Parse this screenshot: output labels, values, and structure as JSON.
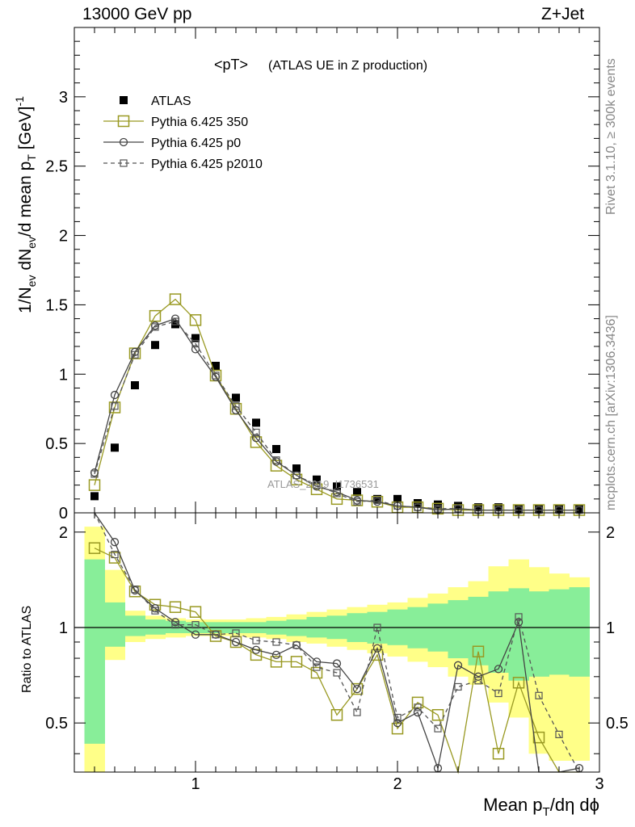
{
  "header": {
    "left": "13000 GeV pp",
    "right": "Z+Jet"
  },
  "side_labels": {
    "rivet": "Rivet 3.1.10, ≥ 300k events",
    "mcplots": "mcplots.cern.ch [arXiv:1306.3436]"
  },
  "watermark": "ATLAS_2019_I1736531",
  "chart_data": [
    {
      "type": "scatter",
      "title": "<pT> (ATLAS UE in Z production)",
      "title_main": "<pT>",
      "title_sub": "(ATLAS UE in Z production)",
      "ylabel": "1/N_ev dN_ev/d mean p_T [GeV]^-1",
      "xlim": [
        0.4,
        3.0
      ],
      "ylim": [
        0,
        3.5
      ],
      "yticks": [
        0,
        0.5,
        1,
        1.5,
        2,
        2.5,
        3
      ],
      "ytick_labels": [
        "0",
        "0.5",
        "1",
        "1.5",
        "2",
        "2.5",
        "3"
      ],
      "legend_position": "top-left",
      "x": [
        0.5,
        0.6,
        0.7,
        0.8,
        0.9,
        1.0,
        1.1,
        1.2,
        1.3,
        1.4,
        1.5,
        1.6,
        1.7,
        1.8,
        1.9,
        2.0,
        2.1,
        2.2,
        2.3,
        2.4,
        2.5,
        2.6,
        2.7,
        2.8,
        2.9
      ],
      "series": [
        {
          "name": "ATLAS",
          "color": "#000000",
          "marker": "filled-square",
          "line": "none",
          "values": [
            0.12,
            0.47,
            0.92,
            1.21,
            1.36,
            1.26,
            1.06,
            0.83,
            0.65,
            0.46,
            0.32,
            0.24,
            0.19,
            0.15,
            0.1,
            0.1,
            0.07,
            0.06,
            0.05,
            0.04,
            0.04,
            0.03,
            0.03,
            0.03,
            0.03
          ]
        },
        {
          "name": "Pythia 6.425 350",
          "color": "#999922",
          "marker": "open-square",
          "line": "solid",
          "values": [
            0.2,
            0.76,
            1.15,
            1.42,
            1.54,
            1.39,
            0.99,
            0.75,
            0.51,
            0.34,
            0.24,
            0.17,
            0.1,
            0.09,
            0.08,
            0.04,
            0.04,
            0.03,
            0.02,
            0.02,
            0.02,
            0.02,
            0.02,
            0.02,
            0.02
          ]
        },
        {
          "name": "Pythia 6.425 p0",
          "color": "#444444",
          "marker": "open-circle",
          "line": "solid",
          "values": [
            0.29,
            0.85,
            1.16,
            1.35,
            1.4,
            1.18,
            0.98,
            0.74,
            0.54,
            0.37,
            0.27,
            0.19,
            0.15,
            0.09,
            0.08,
            0.05,
            0.04,
            0.02,
            0.03,
            0.02,
            0.02,
            0.02,
            0.02,
            0.02,
            0.02
          ]
        },
        {
          "name": "Pythia 6.425 p2010",
          "color": "#555555",
          "marker": "open-square-small",
          "line": "dashed",
          "values": [
            0.28,
            0.77,
            1.14,
            1.34,
            1.38,
            1.22,
            0.99,
            0.77,
            0.58,
            0.38,
            0.27,
            0.2,
            0.14,
            0.08,
            0.09,
            0.05,
            0.04,
            0.03,
            0.03,
            0.02,
            0.02,
            0.02,
            0.02,
            0.02,
            0.02
          ]
        }
      ]
    },
    {
      "type": "line",
      "ylabel": "Ratio to ATLAS",
      "xlabel": "Mean p_T/dη dϕ",
      "xlim": [
        0.4,
        3.0
      ],
      "ylim": [
        0.35,
        2.3
      ],
      "xticks": [
        1,
        2,
        3
      ],
      "xtick_labels": [
        "1",
        "2",
        "3"
      ],
      "yticks": [
        0.5,
        1,
        2
      ],
      "ytick_labels": [
        "0.5",
        "1",
        "2"
      ],
      "reference": 1.0,
      "x": [
        0.5,
        0.6,
        0.7,
        0.8,
        0.9,
        1.0,
        1.1,
        1.2,
        1.3,
        1.4,
        1.5,
        1.6,
        1.7,
        1.8,
        1.9,
        2.0,
        2.1,
        2.2,
        2.3,
        2.4,
        2.5,
        2.6,
        2.7,
        2.8,
        2.9
      ],
      "bands": {
        "yellow_upper": [
          2.08,
          1.52,
          1.13,
          1.09,
          1.07,
          1.06,
          1.06,
          1.06,
          1.07,
          1.08,
          1.1,
          1.12,
          1.14,
          1.16,
          1.18,
          1.2,
          1.24,
          1.28,
          1.34,
          1.4,
          1.56,
          1.64,
          1.55,
          1.48,
          1.44
        ],
        "yellow_lower": [
          0.35,
          0.79,
          0.9,
          0.92,
          0.93,
          0.94,
          0.94,
          0.94,
          0.93,
          0.92,
          0.9,
          0.89,
          0.87,
          0.85,
          0.83,
          0.81,
          0.78,
          0.75,
          0.7,
          0.66,
          0.58,
          0.52,
          0.4,
          0.38,
          0.38
        ],
        "green_upper": [
          1.64,
          1.2,
          1.09,
          1.06,
          1.05,
          1.04,
          1.04,
          1.04,
          1.04,
          1.05,
          1.06,
          1.08,
          1.09,
          1.11,
          1.12,
          1.14,
          1.16,
          1.19,
          1.22,
          1.25,
          1.3,
          1.33,
          1.3,
          1.32,
          1.34
        ],
        "green_lower": [
          0.43,
          0.87,
          0.94,
          0.95,
          0.96,
          0.96,
          0.96,
          0.96,
          0.96,
          0.95,
          0.94,
          0.93,
          0.92,
          0.9,
          0.89,
          0.88,
          0.86,
          0.84,
          0.8,
          0.76,
          0.72,
          0.68,
          0.7,
          0.71,
          0.7
        ]
      },
      "series": [
        {
          "name": "Pythia 6.425 350",
          "color": "#999922",
          "marker": "open-square",
          "line": "solid",
          "values": [
            1.78,
            1.66,
            1.3,
            1.18,
            1.16,
            1.12,
            0.94,
            0.9,
            0.82,
            0.78,
            0.78,
            0.72,
            0.53,
            0.64,
            0.82,
            0.48,
            0.58,
            0.53,
            0.3,
            0.84,
            0.4,
            0.67,
            0.45,
            0.3,
            0.3
          ]
        },
        {
          "name": "Pythia 6.425 p0",
          "color": "#444444",
          "marker": "open-circle",
          "line": "solid",
          "values": [
            2.4,
            1.86,
            1.31,
            1.15,
            1.04,
            0.95,
            0.95,
            0.9,
            0.85,
            0.82,
            0.88,
            0.78,
            0.77,
            0.64,
            0.86,
            0.5,
            0.54,
            0.36,
            0.76,
            0.7,
            0.74,
            1.04,
            0.3,
            0.3,
            0.36
          ]
        },
        {
          "name": "Pythia 6.425 p2010",
          "color": "#555555",
          "marker": "open-square-small",
          "line": "dashed",
          "values": [
            2.33,
            1.7,
            1.32,
            1.13,
            1.02,
            1.02,
            0.95,
            0.96,
            0.91,
            0.9,
            0.88,
            0.75,
            0.72,
            0.54,
            1.0,
            0.52,
            0.56,
            0.48,
            0.65,
            0.68,
            0.62,
            1.08,
            0.61,
            0.46,
            0.34
          ]
        }
      ]
    }
  ]
}
